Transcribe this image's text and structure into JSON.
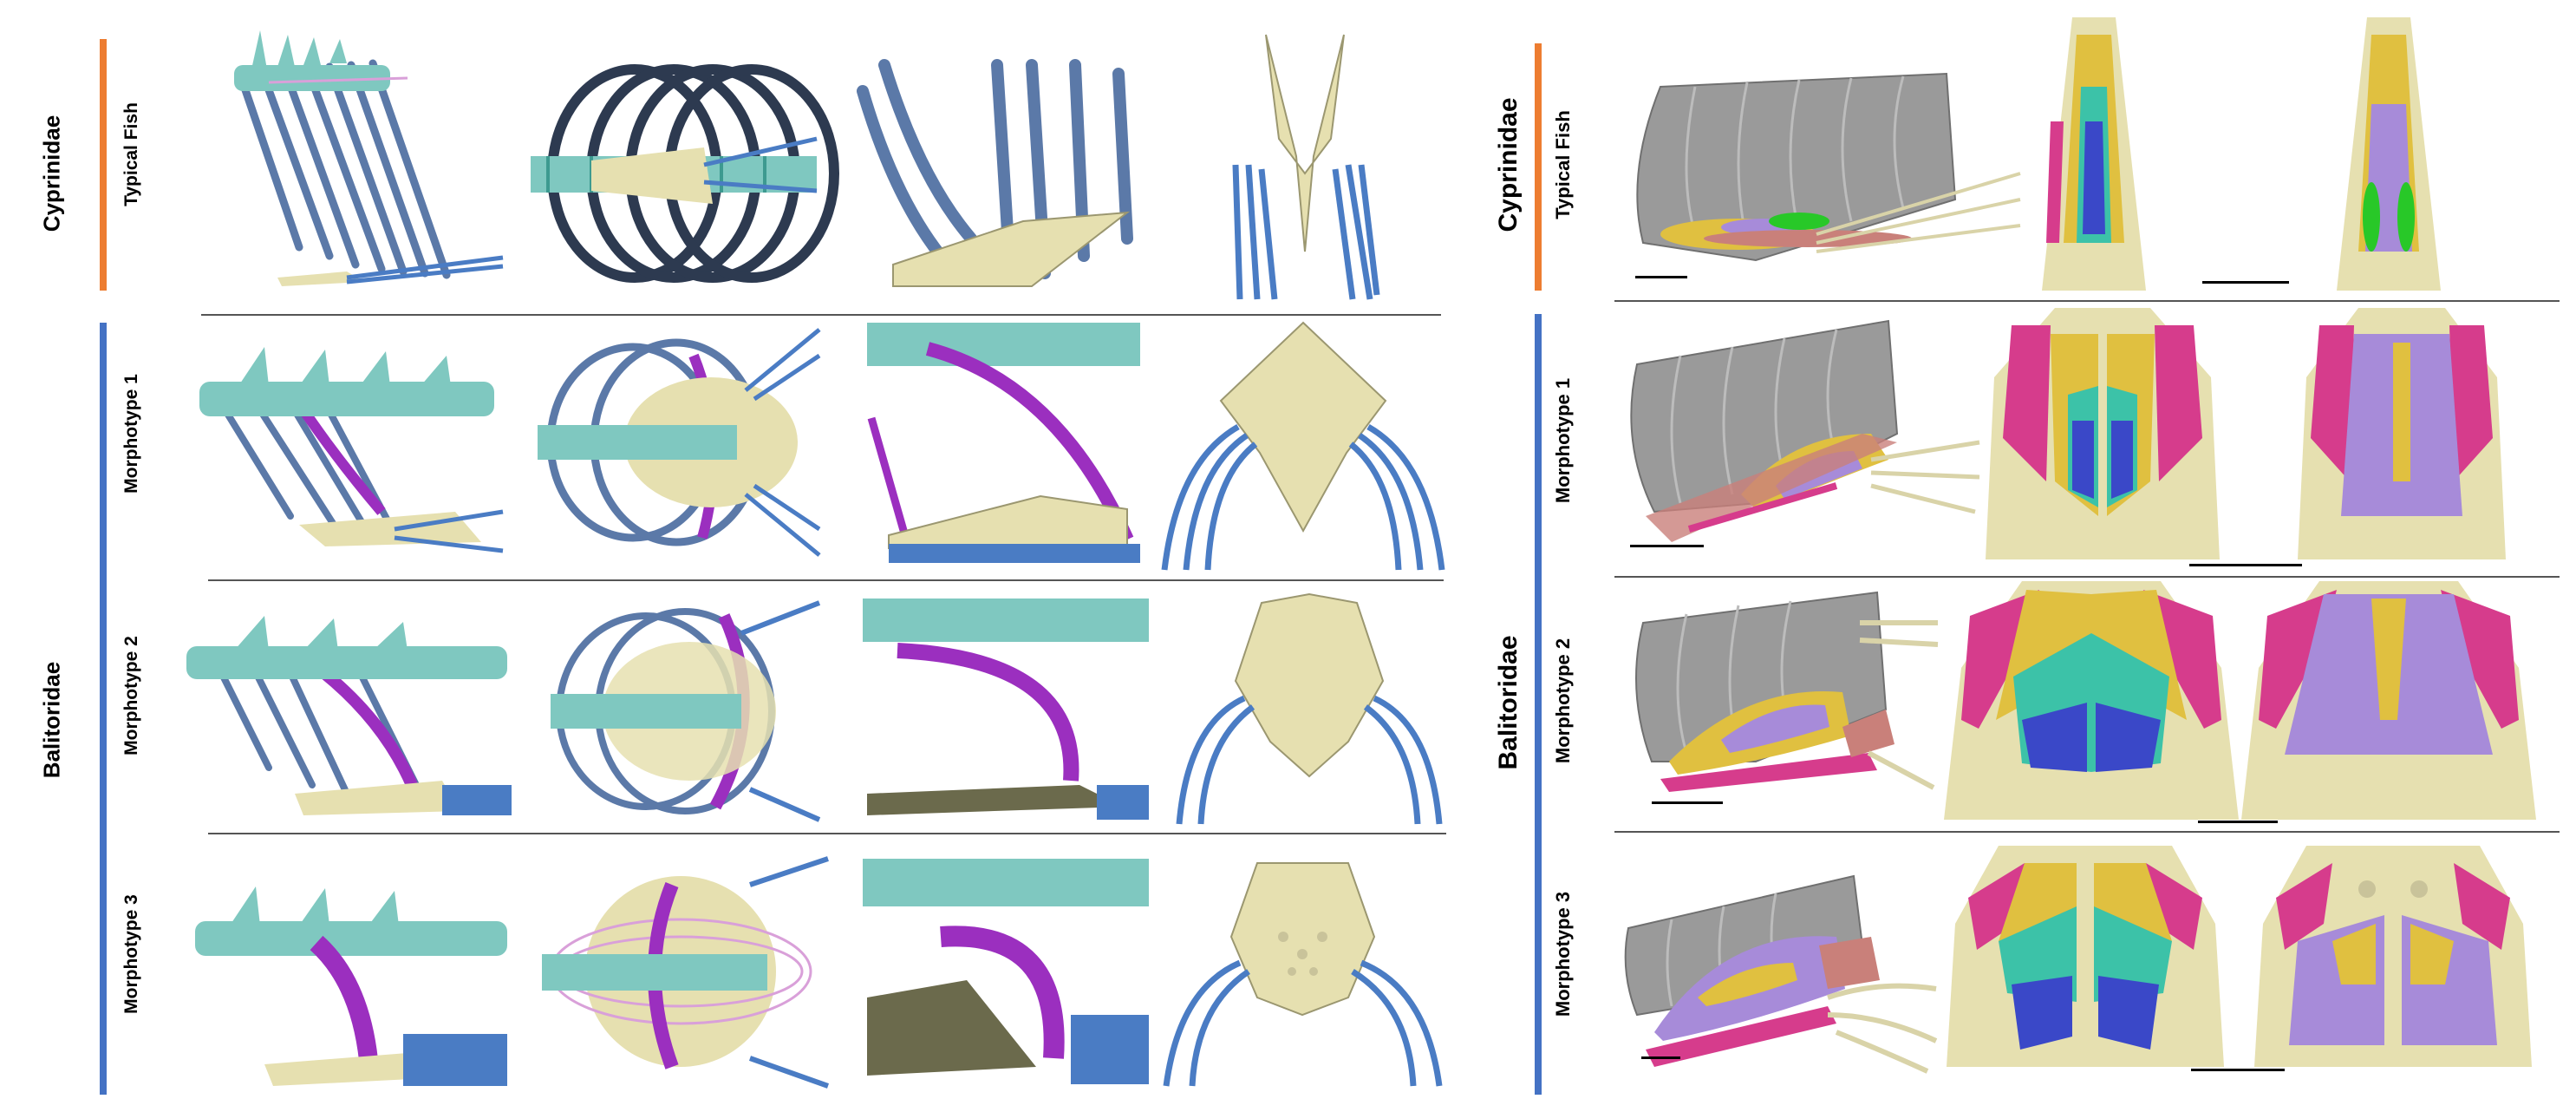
{
  "colors": {
    "cyprinidae_bar": "#ED7D31",
    "balitoridae_bar": "#4472C4",
    "vertebra": "#7fc8c0",
    "rib": "#5b79a8",
    "rib_dark": "#2d3a50",
    "pleural_rib_highlight": "#9b2fbf",
    "bone": "#e6e0b0",
    "fin_ray": "#4a7cc4",
    "ligament": "#d9a0d9",
    "skin": "#9a9a9a",
    "muscle_yellow": "#e0c040",
    "muscle_magenta": "#d63c8c",
    "muscle_lavender": "#a78bd9",
    "muscle_teal": "#3cc2a8",
    "muscle_blue": "#3a48c8",
    "muscle_green": "#28c828",
    "muscle_pink": "#c9807a"
  },
  "left": {
    "families": {
      "cyprinidae": "Cyprinidae",
      "balitoridae": "Balitoridae"
    },
    "rows": [
      {
        "label": "Typical Fish"
      },
      {
        "label": "Morphotype 1"
      },
      {
        "label": "Morphotype 2"
      },
      {
        "label": "Morphotype 3"
      }
    ]
  },
  "right": {
    "families": {
      "cyprinidae": "Cyprinidae",
      "balitoridae": "Balitoridae"
    },
    "rows": [
      {
        "label": "Typical Fish"
      },
      {
        "label": "Morphotype 1"
      },
      {
        "label": "Morphotype 2"
      },
      {
        "label": "Morphotype 3"
      }
    ]
  }
}
